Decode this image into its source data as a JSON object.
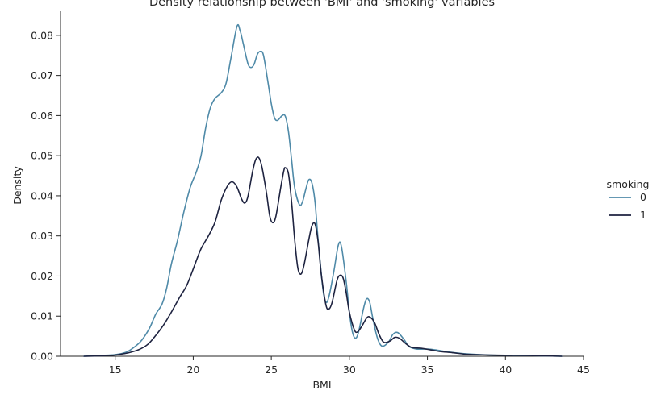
{
  "chart_data": {
    "type": "line",
    "title": "Density relationship between 'BMI' and 'smoking' variables",
    "xlabel": "BMI",
    "ylabel": "Density",
    "xlim": [
      11.5,
      45
    ],
    "ylim": [
      0,
      0.086
    ],
    "xticks": [
      "15",
      "20",
      "25",
      "30",
      "35",
      "40",
      "45"
    ],
    "yticks": [
      "0.00",
      "0.01",
      "0.02",
      "0.03",
      "0.04",
      "0.05",
      "0.06",
      "0.07",
      "0.08"
    ],
    "grid": false,
    "legend": {
      "title": "smoking",
      "placement": "right"
    },
    "series": [
      {
        "name": "0",
        "color": "#4f8aa8",
        "points": [
          [
            13,
            0
          ],
          [
            14,
            0.0002
          ],
          [
            15,
            0.0004
          ],
          [
            15.7,
            0.001
          ],
          [
            16.2,
            0.0022
          ],
          [
            16.7,
            0.004
          ],
          [
            17.2,
            0.007
          ],
          [
            17.6,
            0.0105
          ],
          [
            18,
            0.013
          ],
          [
            18.3,
            0.017
          ],
          [
            18.6,
            0.023
          ],
          [
            19,
            0.029
          ],
          [
            19.4,
            0.036
          ],
          [
            19.8,
            0.042
          ],
          [
            20.2,
            0.046
          ],
          [
            20.5,
            0.05
          ],
          [
            20.8,
            0.057
          ],
          [
            21.1,
            0.062
          ],
          [
            21.4,
            0.0643
          ],
          [
            21.8,
            0.0657
          ],
          [
            22.1,
            0.068
          ],
          [
            22.4,
            0.074
          ],
          [
            22.8,
            0.0822
          ],
          [
            23.0,
            0.0812
          ],
          [
            23.2,
            0.078
          ],
          [
            23.5,
            0.073
          ],
          [
            23.7,
            0.072
          ],
          [
            23.9,
            0.0728
          ],
          [
            24.1,
            0.0752
          ],
          [
            24.3,
            0.076
          ],
          [
            24.5,
            0.075
          ],
          [
            24.8,
            0.068
          ],
          [
            25.0,
            0.063
          ],
          [
            25.2,
            0.0595
          ],
          [
            25.4,
            0.0588
          ],
          [
            25.7,
            0.06
          ],
          [
            25.9,
            0.0598
          ],
          [
            26.1,
            0.056
          ],
          [
            26.3,
            0.049
          ],
          [
            26.5,
            0.042
          ],
          [
            26.8,
            0.0378
          ],
          [
            27.0,
            0.0385
          ],
          [
            27.2,
            0.0415
          ],
          [
            27.4,
            0.044
          ],
          [
            27.6,
            0.0432
          ],
          [
            27.8,
            0.0385
          ],
          [
            28.0,
            0.029
          ],
          [
            28.3,
            0.017
          ],
          [
            28.5,
            0.0135
          ],
          [
            28.7,
            0.015
          ],
          [
            29.0,
            0.021
          ],
          [
            29.3,
            0.0278
          ],
          [
            29.5,
            0.0272
          ],
          [
            29.8,
            0.0185
          ],
          [
            30.0,
            0.011
          ],
          [
            30.2,
            0.006
          ],
          [
            30.4,
            0.0045
          ],
          [
            30.6,
            0.0062
          ],
          [
            30.9,
            0.0118
          ],
          [
            31.1,
            0.0143
          ],
          [
            31.3,
            0.0135
          ],
          [
            31.5,
            0.0095
          ],
          [
            31.8,
            0.0045
          ],
          [
            32.1,
            0.0025
          ],
          [
            32.5,
            0.0035
          ],
          [
            32.8,
            0.0055
          ],
          [
            33.1,
            0.0059
          ],
          [
            33.5,
            0.0042
          ],
          [
            33.8,
            0.0025
          ],
          [
            34.3,
            0.0018
          ],
          [
            35,
            0.0018
          ],
          [
            35.5,
            0.0016
          ],
          [
            36.5,
            0.001
          ],
          [
            37.5,
            0.0006
          ],
          [
            39,
            0.0003
          ],
          [
            41,
            0.0002
          ],
          [
            42.5,
            0.0001
          ],
          [
            43.6,
            0
          ]
        ]
      },
      {
        "name": "1",
        "color": "#1e2340",
        "points": [
          [
            13,
            0
          ],
          [
            14,
            0.0001
          ],
          [
            15,
            0.0003
          ],
          [
            15.5,
            0.0006
          ],
          [
            16,
            0.001
          ],
          [
            16.6,
            0.0018
          ],
          [
            17.1,
            0.003
          ],
          [
            17.6,
            0.0052
          ],
          [
            18.1,
            0.0078
          ],
          [
            18.6,
            0.011
          ],
          [
            19.1,
            0.0145
          ],
          [
            19.6,
            0.0178
          ],
          [
            20.1,
            0.0228
          ],
          [
            20.5,
            0.0268
          ],
          [
            21.0,
            0.0302
          ],
          [
            21.4,
            0.0335
          ],
          [
            21.8,
            0.039
          ],
          [
            22.2,
            0.0425
          ],
          [
            22.5,
            0.0435
          ],
          [
            22.8,
            0.0422
          ],
          [
            23.1,
            0.0392
          ],
          [
            23.3,
            0.0382
          ],
          [
            23.5,
            0.0398
          ],
          [
            23.8,
            0.046
          ],
          [
            24.0,
            0.049
          ],
          [
            24.2,
            0.0495
          ],
          [
            24.4,
            0.0472
          ],
          [
            24.7,
            0.0405
          ],
          [
            24.9,
            0.035
          ],
          [
            25.1,
            0.0333
          ],
          [
            25.3,
            0.035
          ],
          [
            25.6,
            0.042
          ],
          [
            25.8,
            0.0462
          ],
          [
            25.9,
            0.047
          ],
          [
            26.1,
            0.0455
          ],
          [
            26.3,
            0.0385
          ],
          [
            26.5,
            0.029
          ],
          [
            26.7,
            0.022
          ],
          [
            26.9,
            0.0205
          ],
          [
            27.1,
            0.0228
          ],
          [
            27.4,
            0.029
          ],
          [
            27.6,
            0.0325
          ],
          [
            27.8,
            0.033
          ],
          [
            28.0,
            0.0285
          ],
          [
            28.2,
            0.0205
          ],
          [
            28.5,
            0.0128
          ],
          [
            28.7,
            0.0118
          ],
          [
            28.9,
            0.0135
          ],
          [
            29.2,
            0.0188
          ],
          [
            29.4,
            0.0202
          ],
          [
            29.6,
            0.0195
          ],
          [
            29.8,
            0.0158
          ],
          [
            30.0,
            0.011
          ],
          [
            30.3,
            0.0068
          ],
          [
            30.5,
            0.006
          ],
          [
            30.8,
            0.0075
          ],
          [
            31.1,
            0.0095
          ],
          [
            31.3,
            0.0098
          ],
          [
            31.6,
            0.0085
          ],
          [
            31.9,
            0.0055
          ],
          [
            32.2,
            0.0035
          ],
          [
            32.6,
            0.0038
          ],
          [
            32.9,
            0.0047
          ],
          [
            33.2,
            0.0045
          ],
          [
            33.6,
            0.0032
          ],
          [
            34,
            0.0022
          ],
          [
            34.6,
            0.002
          ],
          [
            35.2,
            0.0016
          ],
          [
            35.8,
            0.0012
          ],
          [
            36.6,
            0.0009
          ],
          [
            37.5,
            0.0005
          ],
          [
            39,
            0.0003
          ],
          [
            41,
            0.0002
          ],
          [
            42.5,
            0.0001
          ],
          [
            43.6,
            0
          ]
        ]
      }
    ]
  }
}
